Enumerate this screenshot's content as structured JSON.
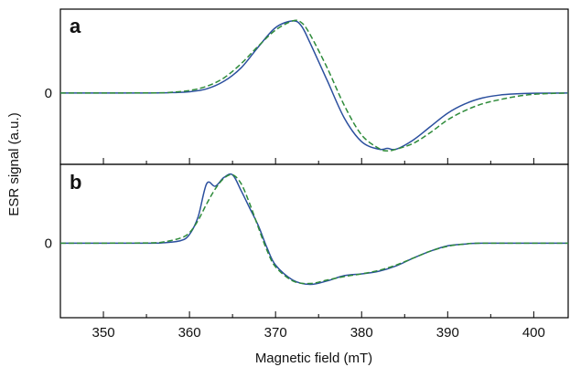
{
  "chart_data": {
    "type": "line",
    "xlabel": "Magnetic field (mT)",
    "ylabel": "ESR signal (a.u.)",
    "xlim": [
      345,
      404
    ],
    "xticks": [
      350,
      360,
      370,
      380,
      390,
      400
    ],
    "x_minor_ticks": [
      355,
      365,
      375,
      385,
      395
    ],
    "colors": {
      "solid": "#2b4f9e",
      "dashed": "#2e8b3a"
    },
    "panels": [
      {
        "label": "a",
        "ylim": [
          -0.85,
          1.0
        ],
        "ytick_labels": [
          {
            "value": 0,
            "label": "0"
          }
        ],
        "series": [
          {
            "style": "solid",
            "points": [
              [
                345,
                0
              ],
              [
                355,
                0
              ],
              [
                358,
                0.005
              ],
              [
                360,
                0.015
              ],
              [
                362,
                0.05
              ],
              [
                364,
                0.14
              ],
              [
                366,
                0.3
              ],
              [
                368,
                0.55
              ],
              [
                370,
                0.78
              ],
              [
                372,
                0.86
              ],
              [
                373,
                0.8
              ],
              [
                374,
                0.6
              ],
              [
                376,
                0.15
              ],
              [
                378,
                -0.3
              ],
              [
                380,
                -0.58
              ],
              [
                382,
                -0.67
              ],
              [
                383,
                -0.66
              ],
              [
                384,
                -0.67
              ],
              [
                386,
                -0.56
              ],
              [
                388,
                -0.4
              ],
              [
                390,
                -0.24
              ],
              [
                392,
                -0.13
              ],
              [
                394,
                -0.06
              ],
              [
                396,
                -0.025
              ],
              [
                398,
                -0.01
              ],
              [
                400,
                -0.003
              ],
              [
                404,
                0
              ]
            ]
          },
          {
            "style": "dashed",
            "points": [
              [
                345,
                0
              ],
              [
                356,
                0.002
              ],
              [
                358,
                0.01
              ],
              [
                360,
                0.03
              ],
              [
                362,
                0.08
              ],
              [
                364,
                0.18
              ],
              [
                366,
                0.35
              ],
              [
                368,
                0.56
              ],
              [
                370,
                0.75
              ],
              [
                372,
                0.86
              ],
              [
                373,
                0.84
              ],
              [
                374,
                0.7
              ],
              [
                376,
                0.3
              ],
              [
                378,
                -0.15
              ],
              [
                380,
                -0.5
              ],
              [
                382,
                -0.66
              ],
              [
                383,
                -0.69
              ],
              [
                384,
                -0.67
              ],
              [
                386,
                -0.6
              ],
              [
                388,
                -0.47
              ],
              [
                390,
                -0.32
              ],
              [
                392,
                -0.21
              ],
              [
                394,
                -0.13
              ],
              [
                396,
                -0.08
              ],
              [
                398,
                -0.04
              ],
              [
                400,
                -0.015
              ],
              [
                402,
                -0.005
              ],
              [
                404,
                0
              ]
            ]
          }
        ]
      },
      {
        "label": "b",
        "ylim": [
          -0.85,
          0.9
        ],
        "ytick_labels": [
          {
            "value": 0,
            "label": "0"
          }
        ],
        "series": [
          {
            "style": "solid",
            "points": [
              [
                345,
                0
              ],
              [
                355,
                0
              ],
              [
                357,
                0.005
              ],
              [
                359,
                0.03
              ],
              [
                360,
                0.1
              ],
              [
                361,
                0.3
              ],
              [
                362,
                0.68
              ],
              [
                363,
                0.65
              ],
              [
                364,
                0.75
              ],
              [
                365,
                0.78
              ],
              [
                366,
                0.6
              ],
              [
                367,
                0.4
              ],
              [
                368,
                0.2
              ],
              [
                369,
                -0.05
              ],
              [
                370,
                -0.25
              ],
              [
                372,
                -0.42
              ],
              [
                374,
                -0.47
              ],
              [
                376,
                -0.43
              ],
              [
                378,
                -0.37
              ],
              [
                380,
                -0.35
              ],
              [
                382,
                -0.32
              ],
              [
                384,
                -0.26
              ],
              [
                386,
                -0.17
              ],
              [
                388,
                -0.09
              ],
              [
                390,
                -0.03
              ],
              [
                392,
                -0.01
              ],
              [
                394,
                0
              ],
              [
                404,
                0
              ]
            ]
          },
          {
            "style": "dashed",
            "points": [
              [
                345,
                0
              ],
              [
                355,
                0.003
              ],
              [
                357,
                0.015
              ],
              [
                359,
                0.06
              ],
              [
                360,
                0.12
              ],
              [
                361,
                0.26
              ],
              [
                362,
                0.45
              ],
              [
                363,
                0.62
              ],
              [
                364,
                0.74
              ],
              [
                365,
                0.78
              ],
              [
                366,
                0.68
              ],
              [
                367,
                0.45
              ],
              [
                368,
                0.18
              ],
              [
                369,
                -0.08
              ],
              [
                370,
                -0.27
              ],
              [
                372,
                -0.43
              ],
              [
                374,
                -0.46
              ],
              [
                376,
                -0.42
              ],
              [
                378,
                -0.38
              ],
              [
                380,
                -0.35
              ],
              [
                382,
                -0.31
              ],
              [
                384,
                -0.25
              ],
              [
                386,
                -0.17
              ],
              [
                388,
                -0.09
              ],
              [
                390,
                -0.035
              ],
              [
                392,
                -0.01
              ],
              [
                394,
                0
              ],
              [
                404,
                0
              ]
            ]
          }
        ]
      }
    ]
  }
}
